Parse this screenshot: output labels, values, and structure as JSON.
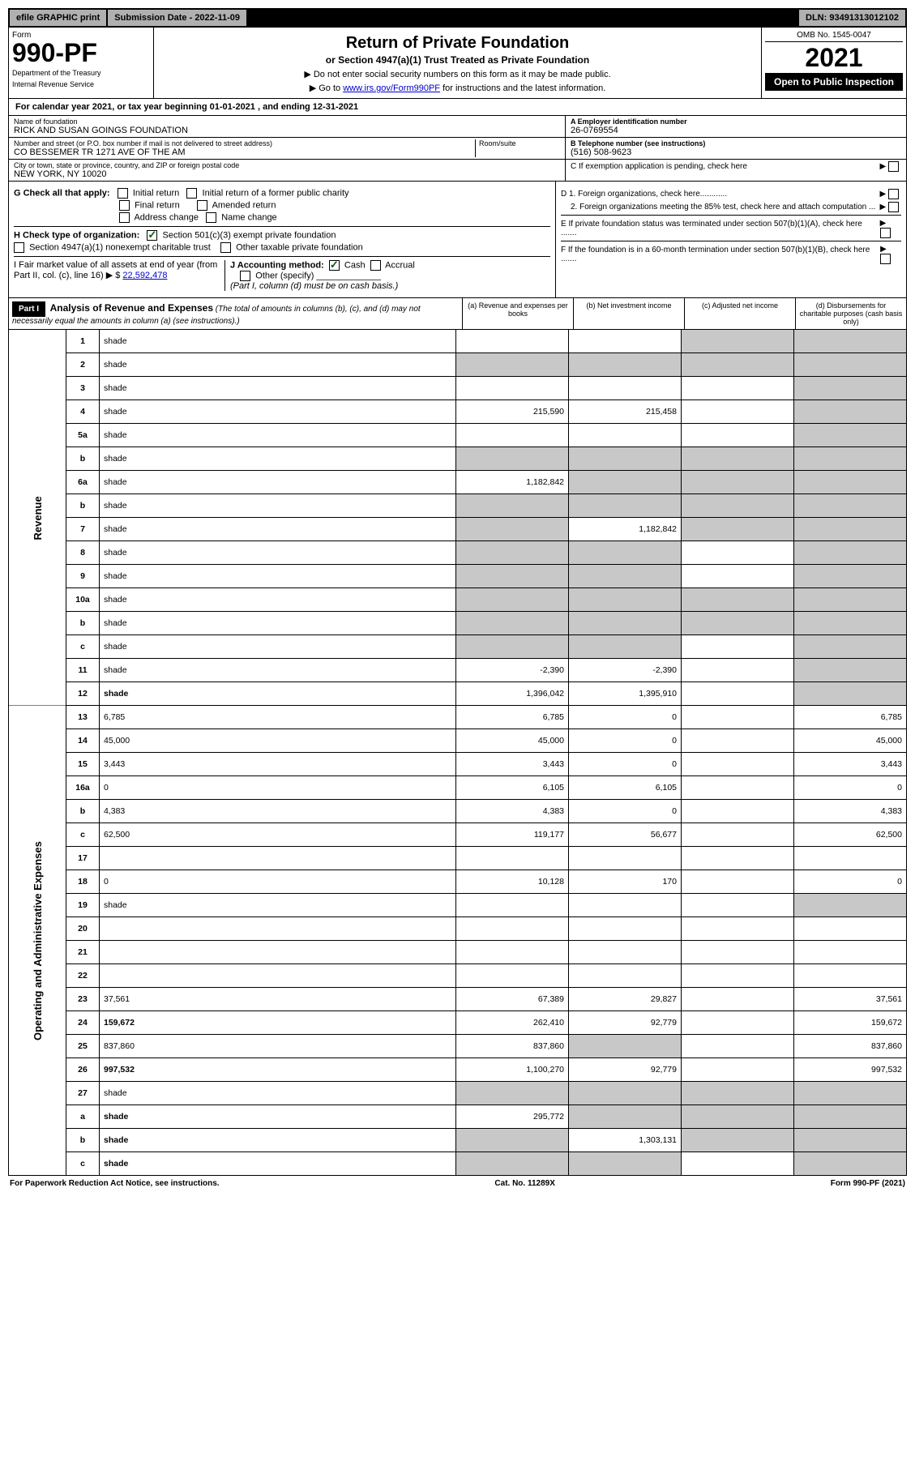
{
  "colors": {
    "header_bg": "#b0b0b0",
    "black": "#000000",
    "white": "#ffffff",
    "shade": "#c8c8c8",
    "link": "#0000cc",
    "check": "#006000"
  },
  "topbar": {
    "efile": "efile GRAPHIC print",
    "submission": "Submission Date - 2022-11-09",
    "dln": "DLN: 93491313012102"
  },
  "header": {
    "form_label": "Form",
    "form_number": "990-PF",
    "dept1": "Department of the Treasury",
    "dept2": "Internal Revenue Service",
    "title": "Return of Private Foundation",
    "subtitle": "or Section 4947(a)(1) Trust Treated as Private Foundation",
    "instr1": "▶ Do not enter social security numbers on this form as it may be made public.",
    "instr2_pre": "▶ Go to ",
    "instr2_link": "www.irs.gov/Form990PF",
    "instr2_post": " for instructions and the latest information.",
    "omb": "OMB No. 1545-0047",
    "year": "2021",
    "open": "Open to Public Inspection"
  },
  "calyear": "For calendar year 2021, or tax year beginning 01-01-2021          , and ending 12-31-2021",
  "info": {
    "name_lbl": "Name of foundation",
    "name_val": "RICK AND SUSAN GOINGS FOUNDATION",
    "addr_lbl": "Number and street (or P.O. box number if mail is not delivered to street address)",
    "addr_val": "CO BESSEMER TR 1271 AVE OF THE AM",
    "room_lbl": "Room/suite",
    "city_lbl": "City or town, state or province, country, and ZIP or foreign postal code",
    "city_val": "NEW YORK, NY  10020",
    "a_lbl": "A Employer identification number",
    "a_val": "26-0769554",
    "b_lbl": "B Telephone number (see instructions)",
    "b_val": "(516) 508-9623",
    "c_lbl": "C If exemption application is pending, check here"
  },
  "checks": {
    "g_lbl": "G Check all that apply:",
    "g_opts": [
      "Initial return",
      "Initial return of a former public charity",
      "Final return",
      "Amended return",
      "Address change",
      "Name change"
    ],
    "h_lbl": "H Check type of organization:",
    "h1": "Section 501(c)(3) exempt private foundation",
    "h2": "Section 4947(a)(1) nonexempt charitable trust",
    "h3": "Other taxable private foundation",
    "i_lbl": "I Fair market value of all assets at end of year (from Part II, col. (c), line 16) ▶ $",
    "i_val": "22,592,478",
    "j_lbl": "J Accounting method:",
    "j_cash": "Cash",
    "j_accrual": "Accrual",
    "j_other": "Other (specify)",
    "j_note": "(Part I, column (d) must be on cash basis.)",
    "d1": "D 1. Foreign organizations, check here............",
    "d2": "2. Foreign organizations meeting the 85% test, check here and attach computation ...",
    "e": "E  If private foundation status was terminated under section 507(b)(1)(A), check here .......",
    "f": "F  If the foundation is in a 60-month termination under section 507(b)(1)(B), check here ......."
  },
  "part1": {
    "label": "Part I",
    "title": "Analysis of Revenue and Expenses",
    "title_note": "(The total of amounts in columns (b), (c), and (d) may not necessarily equal the amounts in column (a) (see instructions).)",
    "cols": {
      "a": "(a) Revenue and expenses per books",
      "b": "(b) Net investment income",
      "c": "(c) Adjusted net income",
      "d": "(d) Disbursements for charitable purposes (cash basis only)"
    }
  },
  "sections": {
    "rev": "Revenue",
    "ops": "Operating and Administrative Expenses"
  },
  "rows": [
    {
      "n": "1",
      "d": "shade",
      "a": "",
      "b": "",
      "c": "shade"
    },
    {
      "n": "2",
      "d": "shade",
      "a": "shade",
      "b": "shade",
      "c": "shade"
    },
    {
      "n": "3",
      "d": "shade",
      "a": "",
      "b": "",
      "c": ""
    },
    {
      "n": "4",
      "d": "shade",
      "a": "215,590",
      "b": "215,458",
      "c": ""
    },
    {
      "n": "5a",
      "d": "shade",
      "a": "",
      "b": "",
      "c": ""
    },
    {
      "n": "b",
      "d": "shade",
      "a": "shade",
      "b": "shade",
      "c": "shade"
    },
    {
      "n": "6a",
      "d": "shade",
      "a": "1,182,842",
      "b": "shade",
      "c": "shade"
    },
    {
      "n": "b",
      "d": "shade",
      "a": "shade",
      "b": "shade",
      "c": "shade"
    },
    {
      "n": "7",
      "d": "shade",
      "a": "shade",
      "b": "1,182,842",
      "c": "shade"
    },
    {
      "n": "8",
      "d": "shade",
      "a": "shade",
      "b": "shade",
      "c": ""
    },
    {
      "n": "9",
      "d": "shade",
      "a": "shade",
      "b": "shade",
      "c": ""
    },
    {
      "n": "10a",
      "d": "shade",
      "a": "shade",
      "b": "shade",
      "c": "shade"
    },
    {
      "n": "b",
      "d": "shade",
      "a": "shade",
      "b": "shade",
      "c": "shade"
    },
    {
      "n": "c",
      "d": "shade",
      "a": "shade",
      "b": "shade",
      "c": ""
    },
    {
      "n": "11",
      "d": "shade",
      "a": "-2,390",
      "b": "-2,390",
      "c": ""
    },
    {
      "n": "12",
      "d": "shade",
      "a": "1,396,042",
      "b": "1,395,910",
      "c": "",
      "bold": true
    },
    {
      "n": "13",
      "d": "6,785",
      "a": "6,785",
      "b": "0",
      "c": ""
    },
    {
      "n": "14",
      "d": "45,000",
      "a": "45,000",
      "b": "0",
      "c": ""
    },
    {
      "n": "15",
      "d": "3,443",
      "a": "3,443",
      "b": "0",
      "c": ""
    },
    {
      "n": "16a",
      "d": "0",
      "a": "6,105",
      "b": "6,105",
      "c": ""
    },
    {
      "n": "b",
      "d": "4,383",
      "a": "4,383",
      "b": "0",
      "c": ""
    },
    {
      "n": "c",
      "d": "62,500",
      "a": "119,177",
      "b": "56,677",
      "c": ""
    },
    {
      "n": "17",
      "d": "",
      "a": "",
      "b": "",
      "c": ""
    },
    {
      "n": "18",
      "d": "0",
      "a": "10,128",
      "b": "170",
      "c": ""
    },
    {
      "n": "19",
      "d": "shade",
      "a": "",
      "b": "",
      "c": ""
    },
    {
      "n": "20",
      "d": "",
      "a": "",
      "b": "",
      "c": ""
    },
    {
      "n": "21",
      "d": "",
      "a": "",
      "b": "",
      "c": ""
    },
    {
      "n": "22",
      "d": "",
      "a": "",
      "b": "",
      "c": ""
    },
    {
      "n": "23",
      "d": "37,561",
      "a": "67,389",
      "b": "29,827",
      "c": ""
    },
    {
      "n": "24",
      "d": "159,672",
      "a": "262,410",
      "b": "92,779",
      "c": "",
      "bold": true
    },
    {
      "n": "25",
      "d": "837,860",
      "a": "837,860",
      "b": "shade",
      "c": ""
    },
    {
      "n": "26",
      "d": "997,532",
      "a": "1,100,270",
      "b": "92,779",
      "c": "",
      "bold": true
    },
    {
      "n": "27",
      "d": "shade",
      "a": "shade",
      "b": "shade",
      "c": "shade"
    },
    {
      "n": "a",
      "d": "shade",
      "a": "295,772",
      "b": "shade",
      "c": "shade",
      "bold": true
    },
    {
      "n": "b",
      "d": "shade",
      "a": "shade",
      "b": "1,303,131",
      "c": "shade",
      "bold": true
    },
    {
      "n": "c",
      "d": "shade",
      "a": "shade",
      "b": "shade",
      "c": "",
      "bold": true
    }
  ],
  "footer": {
    "left": "For Paperwork Reduction Act Notice, see instructions.",
    "mid": "Cat. No. 11289X",
    "right": "Form 990-PF (2021)"
  }
}
